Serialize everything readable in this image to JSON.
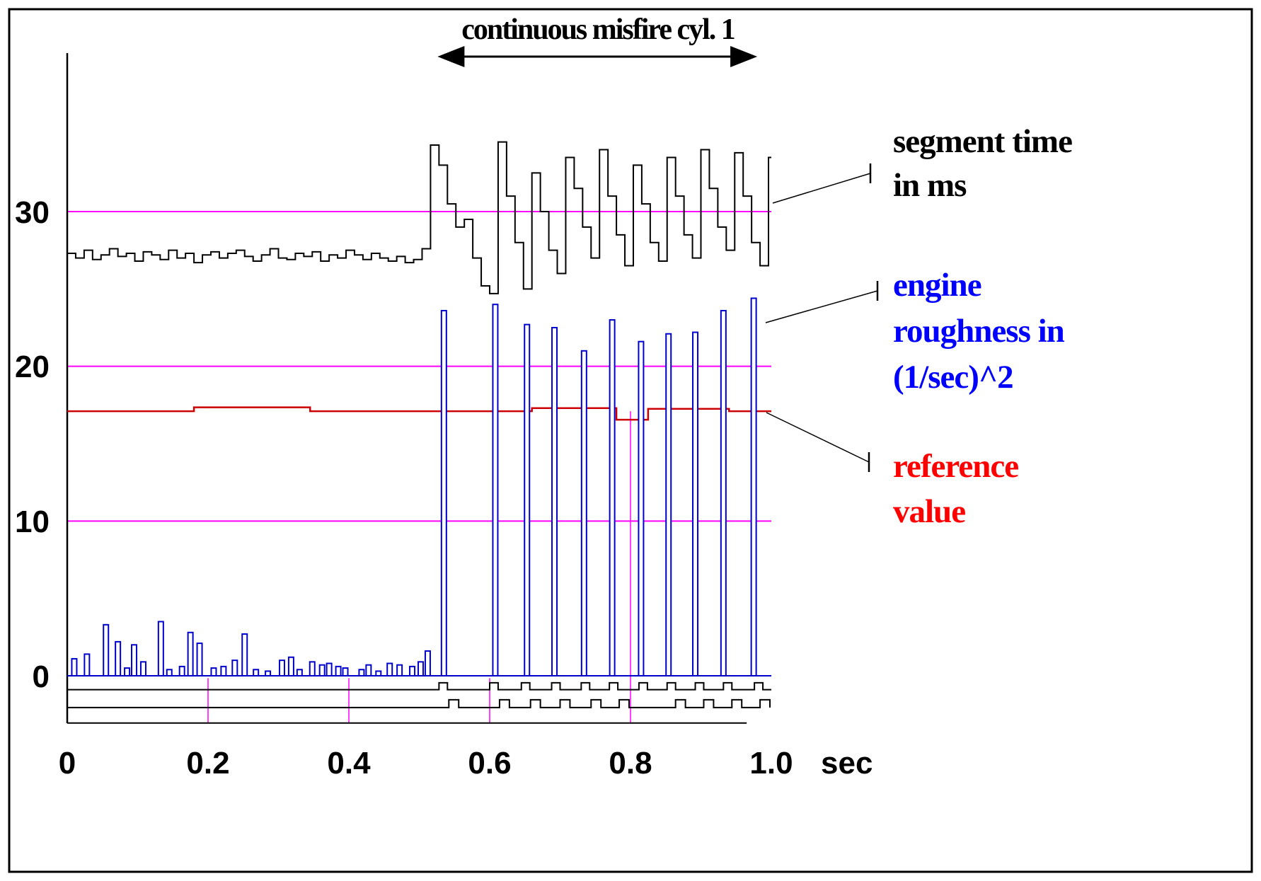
{
  "figure": {
    "annotation": {
      "label": "continuous misfire cyl. 1",
      "span_sec": [
        0.526,
        0.98
      ]
    },
    "axes": {
      "x_unit_label": "sec",
      "x_ticks": [
        {
          "value": 0,
          "label": "0"
        },
        {
          "value": 0.2,
          "label": "0.2"
        },
        {
          "value": 0.4,
          "label": "0.4"
        },
        {
          "value": 0.6,
          "label": "0.6"
        },
        {
          "value": 0.8,
          "label": "0.8"
        },
        {
          "value": 1.0,
          "label": "1.0"
        }
      ],
      "y_ticks": [
        {
          "value": 30,
          "label": "30"
        },
        {
          "value": 20,
          "label": "20"
        },
        {
          "value": 10,
          "label": "10"
        },
        {
          "value": 0,
          "label": "0"
        }
      ]
    },
    "legend": {
      "segment_time": {
        "line1": "segment time",
        "line2": "in ms",
        "color": "#000000"
      },
      "engine_roughness": {
        "line1": "engine",
        "line2": "roughness in",
        "line3": "(1/sec)^2",
        "color": "#0000ff"
      },
      "reference_value": {
        "line1": "reference",
        "line2": "value",
        "color": "#ff0000"
      }
    },
    "colors": {
      "grid": "#ff00ff",
      "segment_time": "#000000",
      "engine_roughness": "#0000cc",
      "reference_value": "#cc0000",
      "flag_traces": "#000000"
    }
  },
  "chart_data": {
    "type": "line",
    "title": "continuous misfire cyl. 1",
    "xlabel": "sec",
    "ylabel": "",
    "x_range": [
      0,
      1.0
    ],
    "ylim": [
      -3.2,
      40
    ],
    "y_grid": [
      0,
      10,
      20,
      30
    ],
    "x_grid": [
      0.2,
      0.4,
      0.6,
      0.8
    ],
    "grid": true,
    "legend_position": "right",
    "misfire_onset_sec": 0.52,
    "series": [
      {
        "key": "reference_value",
        "name": "reference value",
        "type": "step_points",
        "color": "#cc0000",
        "points": [
          [
            0,
            17.1
          ],
          [
            0.18,
            17.35
          ],
          [
            0.345,
            17.1
          ],
          [
            0.66,
            17.3
          ],
          [
            0.78,
            16.55
          ],
          [
            0.825,
            17.25
          ],
          [
            0.94,
            17.1
          ]
        ]
      },
      {
        "key": "engine_roughness",
        "name": "engine roughness in (1/sec)^2",
        "type": "spikes",
        "color": "#0000cc",
        "points": [
          [
            0.01,
            1.1
          ],
          [
            0.028,
            1.4
          ],
          [
            0.055,
            3.3
          ],
          [
            0.072,
            2.2
          ],
          [
            0.085,
            0.5
          ],
          [
            0.095,
            2.0
          ],
          [
            0.108,
            0.9
          ],
          [
            0.133,
            3.5
          ],
          [
            0.145,
            0.4
          ],
          [
            0.163,
            0.6
          ],
          [
            0.175,
            2.8
          ],
          [
            0.188,
            2.1
          ],
          [
            0.208,
            0.5
          ],
          [
            0.222,
            0.6
          ],
          [
            0.238,
            1.0
          ],
          [
            0.252,
            2.7
          ],
          [
            0.268,
            0.4
          ],
          [
            0.285,
            0.3
          ],
          [
            0.305,
            1.0
          ],
          [
            0.318,
            1.2
          ],
          [
            0.33,
            0.4
          ],
          [
            0.348,
            0.9
          ],
          [
            0.362,
            0.7
          ],
          [
            0.372,
            0.8
          ],
          [
            0.385,
            0.6
          ],
          [
            0.395,
            0.5
          ],
          [
            0.418,
            0.4
          ],
          [
            0.428,
            0.7
          ],
          [
            0.442,
            0.3
          ],
          [
            0.458,
            0.8
          ],
          [
            0.472,
            0.7
          ],
          [
            0.49,
            0.6
          ],
          [
            0.502,
            0.9
          ],
          [
            0.512,
            1.6
          ],
          [
            0.535,
            23.6
          ],
          [
            0.608,
            24.0
          ],
          [
            0.653,
            22.7
          ],
          [
            0.692,
            22.5
          ],
          [
            0.734,
            21.0
          ],
          [
            0.774,
            23.0
          ],
          [
            0.815,
            21.6
          ],
          [
            0.854,
            22.1
          ],
          [
            0.892,
            22.2
          ],
          [
            0.932,
            23.6
          ],
          [
            0.975,
            24.4
          ]
        ]
      },
      {
        "key": "segment_time",
        "name": "segment time in ms",
        "type": "step",
        "color": "#000000",
        "dt": 0.012,
        "values": [
          27.3,
          27.0,
          27.5,
          26.9,
          27.2,
          27.6,
          27.1,
          27.3,
          26.8,
          27.4,
          27.2,
          26.9,
          27.5,
          27.0,
          27.3,
          26.7,
          27.2,
          27.4,
          27.0,
          27.3,
          27.5,
          27.1,
          26.8,
          27.2,
          27.6,
          27.0,
          26.9,
          27.3,
          27.1,
          27.4,
          26.8,
          27.2,
          27.0,
          27.5,
          27.2,
          26.9,
          27.3,
          27.0,
          26.8,
          27.1,
          26.7,
          26.9,
          27.6,
          34.3,
          33.0,
          30.5,
          29.0,
          29.5,
          27.0,
          25.2,
          24.7,
          34.5,
          31.0,
          28.0,
          25.0,
          32.5,
          30.0,
          27.5,
          26.0,
          33.5,
          31.5,
          29.0,
          27.0,
          34.0,
          31.0,
          28.5,
          26.5,
          33.0,
          30.5,
          28.0,
          26.8,
          33.5,
          31.0,
          28.5,
          27.0,
          34.0,
          31.5,
          29.0,
          27.5,
          33.8,
          31.0,
          28.0,
          26.5,
          33.5
        ]
      },
      {
        "key": "misfire_flag_upper",
        "name": "misfire detection flag (upper trace)",
        "type": "pulses",
        "color": "#000000",
        "baseline": -0.9,
        "high": -0.45,
        "pulse_width": 0.012,
        "extend_to": 1.0,
        "pulses": [
          0.528,
          0.6,
          0.645,
          0.688,
          0.73,
          0.77,
          0.812,
          0.852,
          0.892,
          0.932,
          0.976
        ]
      },
      {
        "key": "misfire_flag_lower",
        "name": "misfire detection flag (lower trace)",
        "type": "pulses",
        "color": "#000000",
        "baseline": -2.05,
        "high": -1.55,
        "pulse_width": 0.014,
        "extend_to": 0.998,
        "pulses": [
          0.542,
          0.614,
          0.658,
          0.7,
          0.744,
          0.784,
          0.864,
          0.904,
          0.944,
          0.984
        ]
      },
      {
        "key": "bottom_rule",
        "name": "bottom rule line",
        "type": "rule",
        "color": "#000000",
        "at": -3.05,
        "from": 0,
        "to": 0.965
      }
    ]
  }
}
